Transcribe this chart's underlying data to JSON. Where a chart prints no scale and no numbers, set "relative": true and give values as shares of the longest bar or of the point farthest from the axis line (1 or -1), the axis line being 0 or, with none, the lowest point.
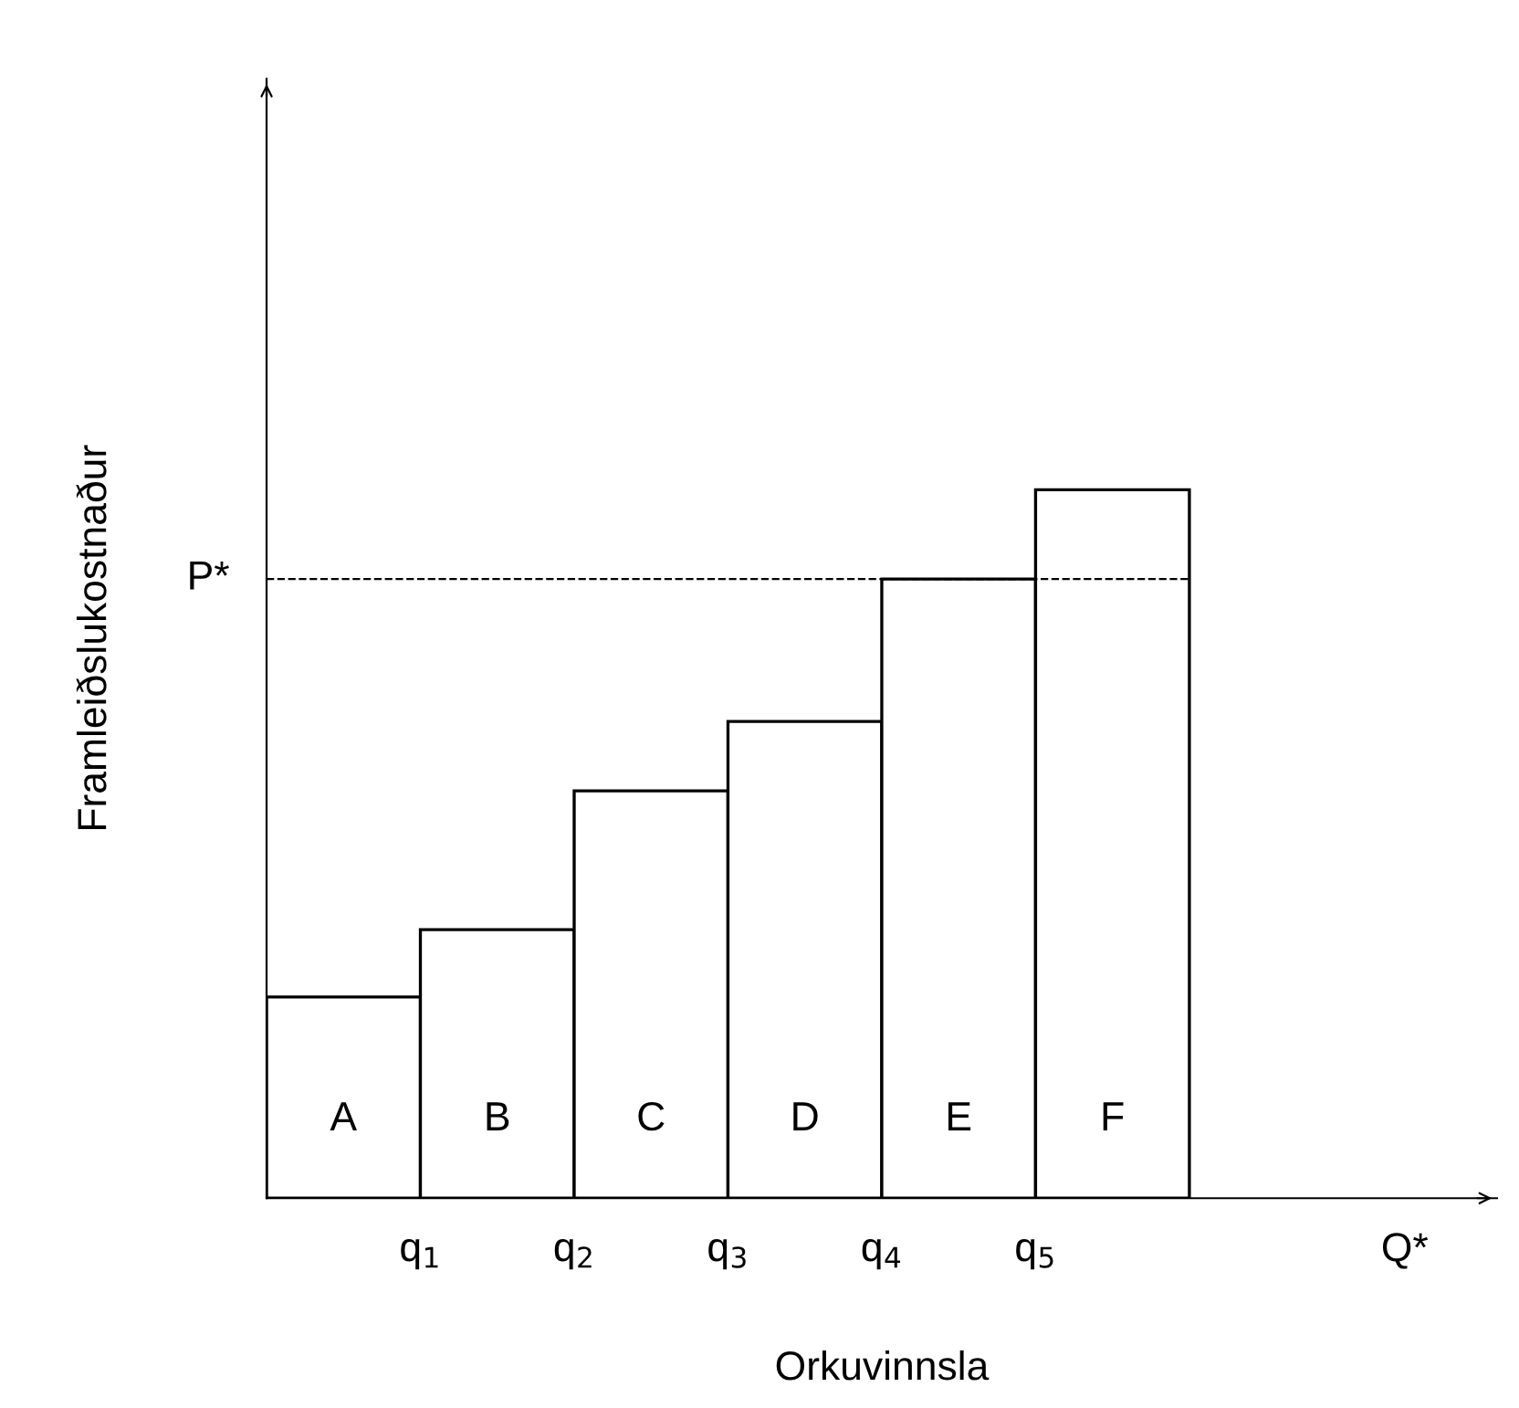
{
  "chart_data": {
    "type": "bar",
    "relative": true,
    "xlabel": "Orkuvinnsla",
    "ylabel": "Framleiðslukostnaður",
    "categories": [
      "A",
      "B",
      "C",
      "D",
      "E",
      "F"
    ],
    "values": [
      0.284,
      0.379,
      0.575,
      0.673,
      0.874,
      1
    ],
    "color": "#ffffff",
    "ref_lines": [
      {
        "axis": "y",
        "value": 0.874,
        "label": "P*",
        "line_style": "dashed",
        "color": "#000000"
      }
    ],
    "annotations": [
      "q$_{1}$",
      "q$_{2}$",
      "q$_{3}$",
      "q$_{4}$",
      "q$_{5}$",
      "Q*"
    ],
    "legend": false
  }
}
